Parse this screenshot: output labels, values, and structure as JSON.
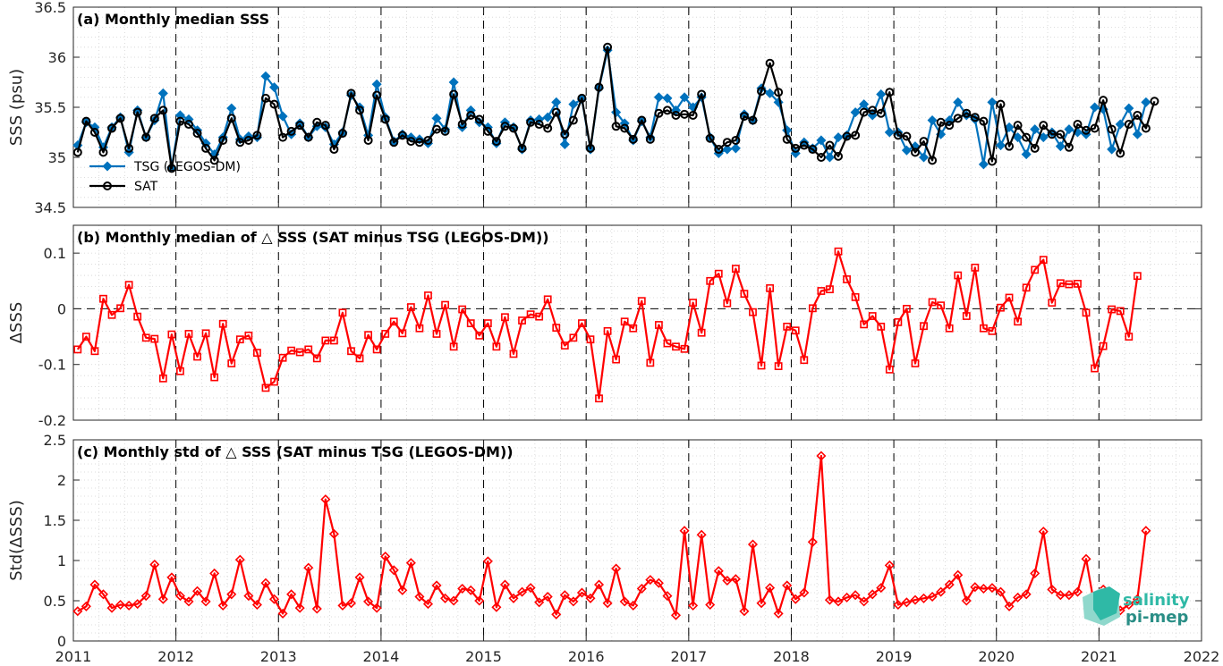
{
  "chart_data": [
    {
      "type": "line",
      "title": "(a) Monthly median SSS",
      "ylabel": "SSS (psu)",
      "xlabel": "",
      "xlim": [
        2011,
        2022
      ],
      "ylim": [
        34.5,
        36.5
      ],
      "yticks": [
        34.5,
        35,
        35.5,
        36,
        36.5
      ],
      "ytick_labels": [
        "34.5",
        "35",
        "35.5",
        "36",
        "36.5"
      ],
      "grid": "minor dotted",
      "legend_position": "lower-left",
      "series": [
        {
          "name": "TSG (LEGOS-DM)",
          "color": "#0072BD",
          "marker": "diamond",
          "values": [
            35.12,
            35.35,
            35.3,
            35.1,
            35.3,
            35.4,
            35.05,
            35.47,
            35.2,
            35.37,
            35.64,
            34.9,
            35.42,
            35.38,
            35.27,
            35.14,
            35.03,
            35.2,
            35.49,
            35.18,
            35.21,
            35.2,
            35.81,
            35.7,
            35.41,
            35.23,
            35.34,
            35.2,
            35.31,
            35.3,
            35.13,
            35.25,
            35.62,
            35.5,
            35.22,
            35.73,
            35.4,
            35.16,
            35.23,
            35.2,
            35.18,
            35.14,
            35.39,
            35.28,
            35.75,
            35.3,
            35.47,
            35.35,
            35.3,
            35.14,
            35.35,
            35.3,
            35.08,
            35.37,
            35.38,
            35.4,
            35.55,
            35.13,
            35.53,
            35.58,
            35.08,
            35.69,
            36.07,
            35.45,
            35.34,
            35.17,
            35.36,
            35.2,
            35.6,
            35.59,
            35.47,
            35.6,
            35.5,
            35.6,
            35.2,
            35.04,
            35.08,
            35.09,
            35.43,
            35.37,
            35.69,
            35.64,
            35.55,
            35.27,
            35.04,
            35.15,
            35.09,
            35.17,
            35.0,
            35.2,
            35.22,
            35.45,
            35.53,
            35.42,
            35.63,
            35.25,
            35.25,
            35.07,
            35.11,
            35.0,
            35.37,
            35.23,
            35.37,
            35.55,
            35.42,
            35.38,
            34.93,
            35.55,
            35.12,
            35.3,
            35.2,
            35.03,
            35.28,
            35.2,
            35.25,
            35.11,
            35.28,
            35.25,
            35.23,
            35.5,
            35.48,
            35.08,
            35.33,
            35.49,
            35.23,
            35.55
          ]
        },
        {
          "name": "SAT",
          "color": "#000000",
          "marker": "circle",
          "values": [
            35.05,
            35.36,
            35.25,
            35.05,
            35.29,
            35.39,
            35.09,
            35.45,
            35.2,
            35.39,
            35.47,
            34.89,
            35.36,
            35.33,
            35.24,
            35.09,
            34.97,
            35.17,
            35.39,
            35.15,
            35.17,
            35.22,
            35.59,
            35.53,
            35.2,
            35.26,
            35.32,
            35.2,
            35.35,
            35.32,
            35.08,
            35.24,
            35.64,
            35.47,
            35.17,
            35.62,
            35.38,
            35.15,
            35.22,
            35.16,
            35.15,
            35.17,
            35.28,
            35.26,
            35.63,
            35.33,
            35.42,
            35.38,
            35.26,
            35.16,
            35.31,
            35.29,
            35.09,
            35.35,
            35.33,
            35.29,
            35.45,
            35.23,
            35.37,
            35.59,
            35.09,
            35.7,
            36.1,
            35.31,
            35.29,
            35.18,
            35.37,
            35.18,
            35.44,
            35.47,
            35.42,
            35.43,
            35.42,
            35.63,
            35.19,
            35.08,
            35.15,
            35.17,
            35.41,
            35.37,
            35.66,
            35.94,
            35.65,
            35.18,
            35.09,
            35.12,
            35.08,
            35.0,
            35.12,
            35.01,
            35.21,
            35.22,
            35.45,
            35.47,
            35.44,
            35.65,
            35.22,
            35.21,
            35.05,
            35.16,
            34.97,
            35.35,
            35.32,
            35.39,
            35.44,
            35.4,
            35.36,
            34.96,
            35.53,
            35.11,
            35.32,
            35.2,
            35.09,
            35.32,
            35.23,
            35.23,
            35.1,
            35.33,
            35.27,
            35.29,
            35.57,
            35.28,
            35.04,
            35.33,
            35.42,
            35.29,
            35.56
          ]
        }
      ]
    },
    {
      "type": "line",
      "title": "(b) Monthly median of △ SSS (SAT minus TSG (LEGOS-DM))",
      "ylabel": "ΔSSS",
      "xlabel": "",
      "xlim": [
        2011,
        2022
      ],
      "ylim": [
        -0.2,
        0.15
      ],
      "yticks": [
        -0.2,
        -0.1,
        0,
        0.1
      ],
      "ytick_labels": [
        "-0.2",
        "-0.1",
        "0",
        "0.1"
      ],
      "zero_line": "dashed",
      "grid": "minor dotted",
      "series": [
        {
          "name": "",
          "color": "#ff0000",
          "marker": "square",
          "values": [
            -0.073,
            -0.05,
            -0.076,
            0.018,
            -0.011,
            0.001,
            0.043,
            -0.014,
            -0.052,
            -0.054,
            -0.125,
            -0.046,
            -0.112,
            -0.045,
            -0.086,
            -0.044,
            -0.123,
            -0.027,
            -0.098,
            -0.055,
            -0.048,
            -0.079,
            -0.142,
            -0.131,
            -0.088,
            -0.075,
            -0.078,
            -0.073,
            -0.089,
            -0.057,
            -0.057,
            -0.007,
            -0.076,
            -0.089,
            -0.047,
            -0.073,
            -0.045,
            -0.023,
            -0.044,
            0.003,
            -0.035,
            0.024,
            -0.045,
            0.007,
            -0.068,
            -0.001,
            -0.026,
            -0.048,
            -0.026,
            -0.068,
            -0.015,
            -0.081,
            -0.021,
            -0.01,
            -0.014,
            0.017,
            -0.034,
            -0.066,
            -0.052,
            -0.026,
            -0.055,
            -0.161,
            -0.04,
            -0.091,
            -0.023,
            -0.035,
            0.014,
            -0.097,
            -0.029,
            -0.062,
            -0.068,
            -0.072,
            0.011,
            -0.043,
            0.05,
            0.063,
            0.01,
            0.072,
            0.027,
            -0.006,
            -0.102,
            0.037,
            -0.103,
            -0.032,
            -0.039,
            -0.092,
            0.001,
            0.032,
            0.035,
            0.103,
            0.053,
            0.021,
            -0.028,
            -0.013,
            -0.032,
            -0.109,
            -0.024,
            0.0,
            -0.098,
            -0.031,
            0.012,
            0.006,
            -0.035,
            0.06,
            -0.013,
            0.074,
            -0.035,
            -0.04,
            0.002,
            0.02,
            -0.023,
            0.038,
            0.07,
            0.088,
            0.011,
            0.046,
            0.044,
            0.045,
            -0.007,
            -0.107,
            -0.067,
            -0.001,
            -0.004,
            -0.05,
            0.059
          ]
        }
      ]
    },
    {
      "type": "line",
      "title": "(c) Monthly std of △ SSS (SAT minus TSG (LEGOS-DM))",
      "ylabel": "Std(ΔSSS)",
      "xlabel": "",
      "xlim": [
        2011,
        2022
      ],
      "ylim": [
        0,
        2.5
      ],
      "yticks": [
        0,
        0.5,
        1,
        1.5,
        2,
        2.5
      ],
      "ytick_labels": [
        "0",
        "0.5",
        "1",
        "1.5",
        "2",
        "2.5"
      ],
      "grid": "minor dotted",
      "series": [
        {
          "name": "",
          "color": "#ff0000",
          "marker": "diamond",
          "values": [
            0.37,
            0.43,
            0.7,
            0.58,
            0.41,
            0.45,
            0.44,
            0.46,
            0.56,
            0.95,
            0.52,
            0.79,
            0.56,
            0.49,
            0.62,
            0.49,
            0.84,
            0.44,
            0.58,
            1.01,
            0.56,
            0.45,
            0.72,
            0.52,
            0.34,
            0.58,
            0.41,
            0.91,
            0.4,
            1.76,
            1.33,
            0.44,
            0.47,
            0.79,
            0.49,
            0.41,
            1.05,
            0.88,
            0.63,
            0.97,
            0.55,
            0.46,
            0.69,
            0.53,
            0.5,
            0.65,
            0.63,
            0.5,
            0.99,
            0.42,
            0.7,
            0.53,
            0.61,
            0.66,
            0.48,
            0.55,
            0.33,
            0.57,
            0.49,
            0.6,
            0.53,
            0.7,
            0.47,
            0.9,
            0.49,
            0.44,
            0.65,
            0.76,
            0.72,
            0.56,
            0.32,
            1.37,
            0.44,
            1.32,
            0.45,
            0.87,
            0.75,
            0.77,
            0.37,
            1.2,
            0.47,
            0.66,
            0.34,
            0.69,
            0.52,
            0.6,
            1.23,
            2.3,
            0.51,
            0.49,
            0.54,
            0.57,
            0.49,
            0.58,
            0.66,
            0.94,
            0.45,
            0.48,
            0.51,
            0.53,
            0.55,
            0.61,
            0.7,
            0.82,
            0.5,
            0.67,
            0.65,
            0.66,
            0.61,
            0.43,
            0.54,
            0.58,
            0.84,
            1.36,
            0.64,
            0.57,
            0.57,
            0.61,
            1.02,
            0.42,
            0.64,
            0.52,
            0.38,
            0.45,
            0.52,
            1.37
          ]
        }
      ]
    }
  ],
  "xaxis": {
    "ticks": [
      2011,
      2012,
      2013,
      2014,
      2015,
      2016,
      2017,
      2018,
      2019,
      2020,
      2021,
      2022
    ],
    "tick_labels": [
      "2011",
      "2012",
      "2013",
      "2014",
      "2015",
      "2016",
      "2017",
      "2018",
      "2019",
      "2020",
      "2021",
      "2022"
    ],
    "series_start": 2011.042,
    "series_step_years": 0.08333
  },
  "logo": {
    "line1": "salinity",
    "line2": "pi-mep",
    "colors": [
      "#2fb9a6",
      "#2a8e86",
      "#8fd8cc"
    ]
  }
}
